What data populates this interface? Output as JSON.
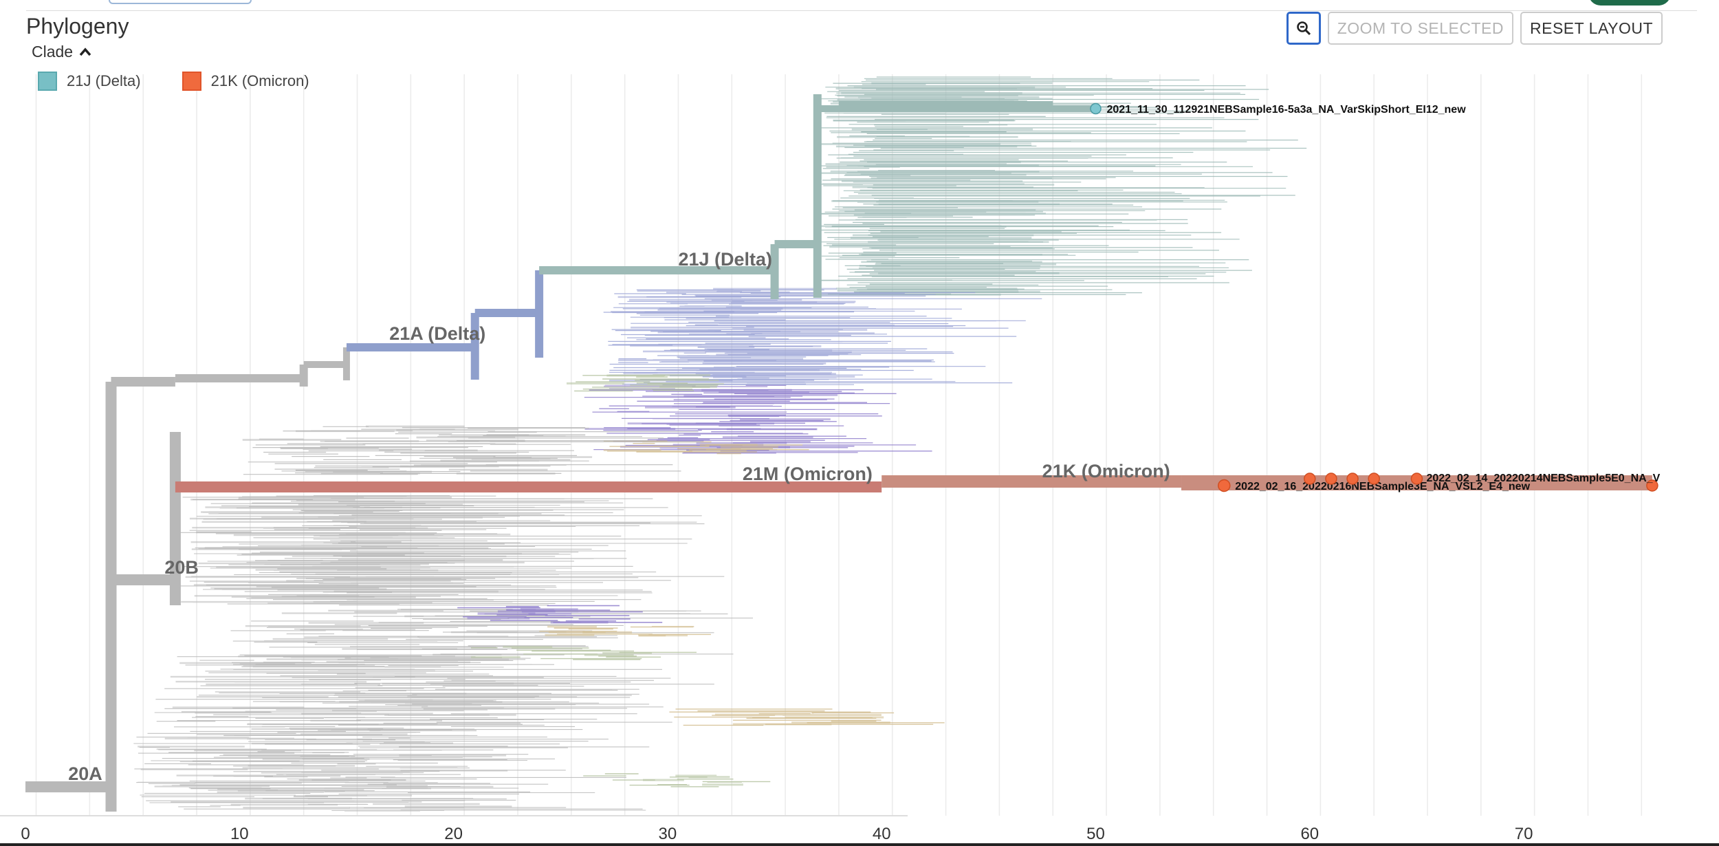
{
  "panel": {
    "title": "Phylogeny"
  },
  "clade_toggle": {
    "label": "Clade"
  },
  "legend": [
    {
      "label": "21J (Delta)",
      "color": "#78bfc5",
      "border": "#5aa9af"
    },
    {
      "label": "21K (Omicron)",
      "color": "#f06a3d",
      "border": "#e0542a"
    }
  ],
  "toolbar": {
    "zoom_icon": "zoom-out-icon",
    "zoom_selected_label": "ZOOM TO SELECTED",
    "reset_layout_label": "RESET LAYOUT"
  },
  "chart_data": {
    "type": "phylogenetic-tree",
    "x_axis": {
      "label": "",
      "range": [
        -2,
        77
      ],
      "ticks": [
        0,
        10,
        20,
        30,
        40,
        50,
        60,
        70
      ],
      "tick_labels": [
        "0",
        "10",
        "20",
        "30",
        "40",
        "50",
        "60",
        "70"
      ]
    },
    "clade_labels": [
      {
        "name": "20A",
        "x": 2.0
      },
      {
        "name": "20B",
        "x": 6.5
      },
      {
        "name": "21A (Delta)",
        "x": 17.0
      },
      {
        "name": "21J (Delta)",
        "x": 30.5
      },
      {
        "name": "21M (Omicron)",
        "x": 33.5
      },
      {
        "name": "21K (Omicron)",
        "x": 47.5
      }
    ],
    "selected_tips": [
      {
        "label": "2021_11_30_112921NEBSample16-5a3a_NA_VarSkipShort_EI12_new",
        "x": 50.0,
        "clade": "21J (Delta)"
      },
      {
        "label": "2022_02_16_20220216NEBSample3E_NA_VSL2_E4_new",
        "x": 56.0,
        "clade": "21K (Omicron)"
      },
      {
        "label": "2022_02_14_20220214NEBSample5E0_NA_V",
        "x": 65.0,
        "clade": "21K (Omicron)"
      }
    ],
    "colors": {
      "basal": "#b8b8b8",
      "delta_21a": "#8f9fcc",
      "delta_21j": "#9dbab6",
      "omicron_21m": "#c97c74",
      "omicron_21k": "#c98d7f",
      "tip_21j": "#7dc7d0",
      "tip_21k": "#f0693c"
    }
  }
}
